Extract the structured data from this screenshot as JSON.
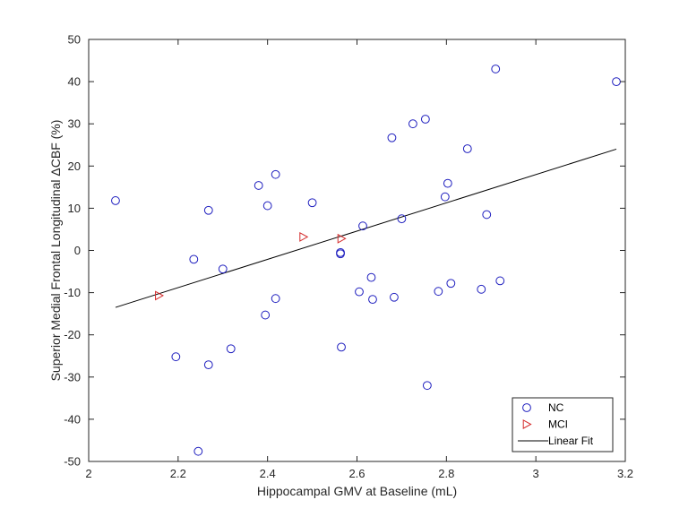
{
  "chart_data": {
    "type": "scatter",
    "title": "",
    "xlabel": "Hippocampal GMV at Baseline (mL)",
    "ylabel": "Superior Medial Frontal Longitudinal ΔCBF (%)",
    "xlim": [
      2,
      3.2
    ],
    "ylim": [
      -50,
      50
    ],
    "xticks": [
      "2",
      "2.2",
      "2.4",
      "2.6",
      "2.8",
      "3",
      "3.2"
    ],
    "yticks": [
      "-50",
      "-40",
      "-30",
      "-20",
      "-10",
      "0",
      "10",
      "20",
      "30",
      "40",
      "50"
    ],
    "grid": false,
    "legend_position": "bottom-right",
    "series": [
      {
        "name": "NC",
        "marker": "circle",
        "color": "#1f1fbf",
        "points": [
          [
            2.06,
            11.8
          ],
          [
            2.195,
            -25.2
          ],
          [
            2.235,
            -2.1
          ],
          [
            2.245,
            -47.6
          ],
          [
            2.268,
            9.5
          ],
          [
            2.268,
            -27.1
          ],
          [
            2.3,
            -4.4
          ],
          [
            2.318,
            -23.3
          ],
          [
            2.38,
            15.4
          ],
          [
            2.395,
            -15.3
          ],
          [
            2.4,
            10.6
          ],
          [
            2.418,
            18.0
          ],
          [
            2.418,
            -11.4
          ],
          [
            2.5,
            11.3
          ],
          [
            2.563,
            -0.5
          ],
          [
            2.563,
            -0.8
          ],
          [
            2.565,
            -22.9
          ],
          [
            2.605,
            -9.8
          ],
          [
            2.613,
            5.8
          ],
          [
            2.632,
            -6.4
          ],
          [
            2.635,
            -11.6
          ],
          [
            2.678,
            26.7
          ],
          [
            2.683,
            -11.1
          ],
          [
            2.7,
            7.5
          ],
          [
            2.725,
            30.0
          ],
          [
            2.753,
            31.1
          ],
          [
            2.757,
            -32.0
          ],
          [
            2.782,
            -9.7
          ],
          [
            2.797,
            12.7
          ],
          [
            2.803,
            15.9
          ],
          [
            2.81,
            -7.8
          ],
          [
            2.847,
            24.1
          ],
          [
            2.878,
            -9.2
          ],
          [
            2.89,
            8.5
          ],
          [
            2.91,
            43.0
          ],
          [
            2.92,
            -7.2
          ],
          [
            3.18,
            40.0
          ]
        ]
      },
      {
        "name": "MCI",
        "marker": "triangle-right",
        "color": "#d42a2a",
        "points": [
          [
            2.157,
            -10.7
          ],
          [
            2.48,
            3.2
          ],
          [
            2.565,
            2.8
          ]
        ]
      },
      {
        "name": "Linear Fit",
        "marker": "line",
        "color": "#000000",
        "points": [
          [
            2.06,
            -13.5
          ],
          [
            3.18,
            24.0
          ]
        ]
      }
    ]
  }
}
